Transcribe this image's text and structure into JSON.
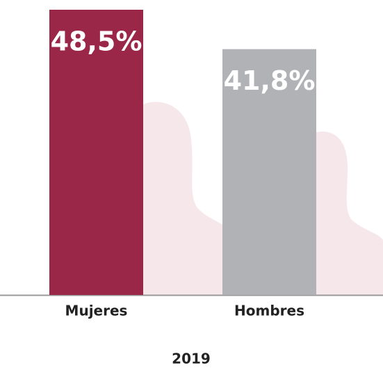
{
  "chart_data": {
    "type": "bar",
    "xlabel": "2019",
    "categories": [
      "Mujeres",
      "Hombres"
    ],
    "values": [
      48.5,
      41.8
    ],
    "value_labels": [
      "48,5%",
      "41,8%"
    ],
    "colors": [
      "#9b2748",
      "#b1b2b6"
    ]
  }
}
